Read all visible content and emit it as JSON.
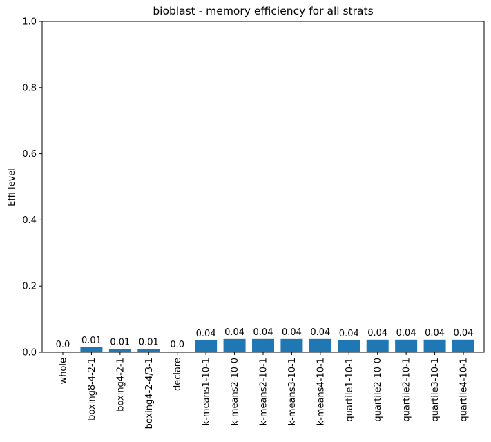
{
  "chart_data": {
    "type": "bar",
    "title": "bioblast - memory efficiency for all strats",
    "xlabel": "",
    "ylabel": "Effi level",
    "ylim": [
      0,
      1
    ],
    "yticks": [
      "0.0",
      "0.2",
      "0.4",
      "0.6",
      "0.8",
      "1.0"
    ],
    "grid": false,
    "bar_color": "#1f77b4",
    "categories": [
      "whole",
      "boxing8-4-2-1",
      "boxing4-2-1",
      "boxing4-2-4/3-1",
      "declare",
      "k-means1-10-1",
      "k-means2-10-0",
      "k-means2-10-1",
      "k-means3-10-1",
      "k-means4-10-1",
      "quartile1-10-1",
      "quartile2-10-0",
      "quartile2-10-1",
      "quartile3-10-1",
      "quartile4-10-1"
    ],
    "values": [
      0.002,
      0.015,
      0.009,
      0.009,
      0.002,
      0.036,
      0.04,
      0.04,
      0.04,
      0.04,
      0.036,
      0.038,
      0.038,
      0.038,
      0.038
    ],
    "value_labels": [
      "0.0",
      "0.01",
      "0.01",
      "0.01",
      "0.0",
      "0.04",
      "0.04",
      "0.04",
      "0.04",
      "0.04",
      "0.04",
      "0.04",
      "0.04",
      "0.04",
      "0.04"
    ]
  }
}
